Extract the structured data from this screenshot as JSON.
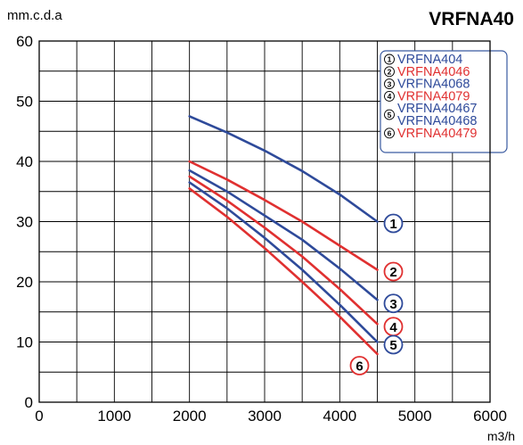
{
  "chart_data": {
    "type": "line",
    "title": "VRFNA40",
    "ylabel": "mm.c.d.a",
    "xlabel": "m3/h",
    "xlim": [
      0,
      6000
    ],
    "ylim": [
      0,
      60
    ],
    "x_ticks": [
      "0",
      "1000",
      "2000",
      "3000",
      "4000",
      "5000",
      "6000"
    ],
    "y_ticks": [
      "0",
      "10",
      "20",
      "30",
      "40",
      "50",
      "60"
    ],
    "grid": true,
    "legend_position": "top-right",
    "series": [
      {
        "marker": "1",
        "name": "VRFNA404",
        "color": "#2e4a9a",
        "points": [
          [
            2000,
            47.5
          ],
          [
            2500,
            44.8
          ],
          [
            3000,
            41.8
          ],
          [
            3500,
            38.4
          ],
          [
            4000,
            34.5
          ],
          [
            4500,
            30.0
          ]
        ]
      },
      {
        "marker": "2",
        "name": "VRFNA4046",
        "color": "#e03030",
        "points": [
          [
            2000,
            40.0
          ],
          [
            2500,
            37.0
          ],
          [
            3000,
            33.6
          ],
          [
            3500,
            30.0
          ],
          [
            4000,
            26.0
          ],
          [
            4500,
            22.0
          ]
        ]
      },
      {
        "marker": "3",
        "name": "VRFNA4068",
        "color": "#2e4a9a",
        "points": [
          [
            2000,
            38.5
          ],
          [
            2500,
            35.0
          ],
          [
            3000,
            31.0
          ],
          [
            3500,
            27.0
          ],
          [
            4000,
            22.2
          ],
          [
            4500,
            17.0
          ]
        ]
      },
      {
        "marker": "4",
        "name": "VRFNA4079",
        "color": "#e03030",
        "points": [
          [
            2000,
            37.5
          ],
          [
            2500,
            33.5
          ],
          [
            3000,
            29.0
          ],
          [
            3500,
            24.2
          ],
          [
            4000,
            18.8
          ],
          [
            4500,
            13.0
          ]
        ]
      },
      {
        "marker": "5",
        "name": "VRFNA40467 VRFNA40468",
        "color": "#2e4a9a",
        "points": [
          [
            2000,
            36.5
          ],
          [
            2500,
            32.2
          ],
          [
            3000,
            27.3
          ],
          [
            3500,
            22.0
          ],
          [
            4000,
            16.2
          ],
          [
            4500,
            10.0
          ]
        ]
      },
      {
        "marker": "6",
        "name": "VRFNA40479",
        "color": "#e03030",
        "points": [
          [
            2000,
            35.5
          ],
          [
            2500,
            30.8
          ],
          [
            3000,
            25.6
          ],
          [
            3500,
            20.0
          ],
          [
            4000,
            14.2
          ],
          [
            4500,
            8.0
          ]
        ]
      }
    ],
    "legend": [
      {
        "marker": "1",
        "lines": [
          "VRFNA404"
        ],
        "color": "#2e4a9a"
      },
      {
        "marker": "2",
        "lines": [
          "VRFNA4046"
        ],
        "color": "#e03030"
      },
      {
        "marker": "3",
        "lines": [
          "VRFNA4068"
        ],
        "color": "#2e4a9a"
      },
      {
        "marker": "4",
        "lines": [
          "VRFNA4079"
        ],
        "color": "#e03030"
      },
      {
        "marker": "5",
        "lines": [
          "VRFNA40467",
          "VRFNA40468"
        ],
        "color": "#2e4a9a"
      },
      {
        "marker": "6",
        "lines": [
          "VRFNA40479"
        ],
        "color": "#e03030"
      }
    ]
  }
}
